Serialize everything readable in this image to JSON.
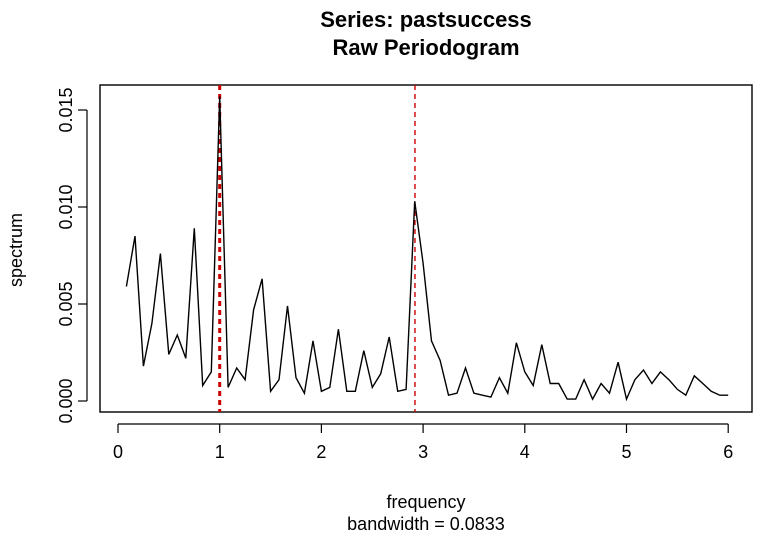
{
  "chart_data": {
    "type": "line",
    "title": "Series: pastsuccess",
    "subtitle": "Raw Periodogram",
    "xlabel": "frequency",
    "sublabel": "bandwidth = 0.0833",
    "ylabel": "spectrum",
    "xlim": [
      0,
      6
    ],
    "ylim": [
      0,
      0.015
    ],
    "xticks": [
      "0",
      "1",
      "2",
      "3",
      "4",
      "5",
      "6"
    ],
    "yticks": [
      "0.000",
      "0.005",
      "0.010",
      "0.015"
    ],
    "vlines": [
      1.0,
      2.92
    ],
    "vline_color": "#cc0000",
    "line_color": "#000000",
    "series": [
      {
        "x": [
          0.083,
          0.167,
          0.25,
          0.333,
          0.417,
          0.5,
          0.583,
          0.667,
          0.75,
          0.833,
          0.917,
          1.0,
          1.083,
          1.167,
          1.25,
          1.333,
          1.417,
          1.5,
          1.583,
          1.667,
          1.75,
          1.833,
          1.917,
          2.0,
          2.083,
          2.167,
          2.25,
          2.333,
          2.417,
          2.5,
          2.583,
          2.667,
          2.75,
          2.833,
          2.917,
          3.0,
          3.083,
          3.167,
          3.25,
          3.333,
          3.417,
          3.5,
          3.583,
          3.667,
          3.75,
          3.833,
          3.917,
          4.0,
          4.083,
          4.167,
          4.25,
          4.333,
          4.417,
          4.5,
          4.583,
          4.667,
          4.75,
          4.833,
          4.917,
          5.0,
          5.083,
          5.167,
          5.25,
          5.333,
          5.417,
          5.5,
          5.583,
          5.667,
          5.75,
          5.833,
          5.917,
          6.0
        ],
        "values": [
          0.0059,
          0.0085,
          0.0018,
          0.004,
          0.0076,
          0.0024,
          0.0034,
          0.0022,
          0.0089,
          0.0008,
          0.0015,
          0.0157,
          0.0007,
          0.0017,
          0.0011,
          0.0047,
          0.0063,
          0.0005,
          0.0011,
          0.0049,
          0.0012,
          0.0004,
          0.0031,
          0.0005,
          0.0007,
          0.0037,
          0.0005,
          0.0005,
          0.0026,
          0.0007,
          0.0014,
          0.0033,
          0.0005,
          0.0006,
          0.0103,
          0.0071,
          0.0031,
          0.0021,
          0.0003,
          0.0004,
          0.0017,
          0.0004,
          0.0003,
          0.0002,
          0.0012,
          0.0004,
          0.003,
          0.0015,
          0.0008,
          0.0029,
          0.0009,
          0.0009,
          0.0001,
          0.0001,
          0.0011,
          0.0001,
          0.0009,
          0.0004,
          0.002,
          0.0001,
          0.0011,
          0.0016,
          0.0009,
          0.0015,
          0.0011,
          0.0006,
          0.0003,
          0.0013,
          0.0009,
          0.0005,
          0.0003,
          0.0003
        ]
      }
    ]
  }
}
